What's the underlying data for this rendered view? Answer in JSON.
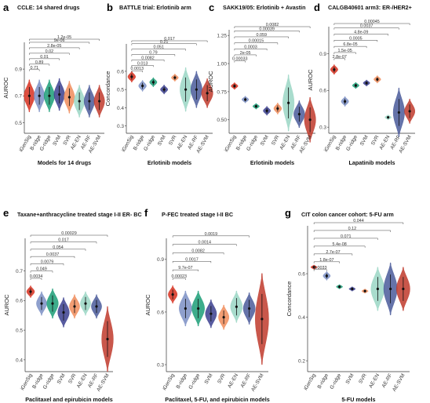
{
  "colors": {
    "iGenSig": "#d7301f",
    "B-ridge": "#7b8fc4",
    "G-ridge": "#1b9e77",
    "SVM": "#3b3f8f",
    "SVR": "#f08c5a",
    "AE-EN": "#9ad6c4",
    "AE-RF": "#4a5a9a",
    "AE-SVM": "#c0392b"
  },
  "chart_data": [
    {
      "panel": "a",
      "type": "violin",
      "title": "CCLE: 14 shared drugs",
      "xlabel": "Models for 14 drugs",
      "ylabel": "AUROC",
      "ylim": [
        0.42,
        1.1
      ],
      "yticks": [
        0.5,
        0.7,
        0.9
      ],
      "categories": [
        "iGenSig",
        "B-ridge",
        "G-ridge",
        "SVM",
        "SVR",
        "AE-EN",
        "AE-RF",
        "AE-SVM"
      ],
      "medians": [
        0.7,
        0.7,
        0.7,
        0.71,
        0.69,
        0.66,
        0.66,
        0.66
      ],
      "spreads": [
        0.12,
        0.12,
        0.12,
        0.12,
        0.12,
        0.12,
        0.12,
        0.12
      ],
      "comparisons": [
        {
          "p": "0.71",
          "to": "B-ridge"
        },
        {
          "p": "0.89",
          "to": "G-ridge"
        },
        {
          "p": "0.01",
          "to": "SVM"
        },
        {
          "p": "0.02",
          "to": "SVR"
        },
        {
          "p": "2.8e-05",
          "to": "AE-EN"
        },
        {
          "p": "9e-06",
          "to": "AE-RF"
        },
        {
          "p": "1.2e-05",
          "to": "AE-SVM"
        }
      ]
    },
    {
      "panel": "b",
      "type": "violin",
      "title": "BATTLE trial: Erlotinib arm",
      "xlabel": "Erlotinib models",
      "ylabel": "Concordance",
      "ylim": [
        0.26,
        0.75
      ],
      "yticks": [
        0.3,
        0.4,
        0.5,
        0.6
      ],
      "categories": [
        "iGenSig",
        "B-ridge",
        "G-ridge",
        "SVM",
        "SVR",
        "AE-EN",
        "AE-RF",
        "AE-SVM"
      ],
      "medians": [
        0.57,
        0.52,
        0.54,
        0.5,
        0.565,
        0.5,
        0.5,
        0.48
      ],
      "spreads": [
        0.03,
        0.03,
        0.025,
        0.025,
        0.02,
        0.12,
        0.1,
        0.08
      ],
      "comparisons": [
        {
          "p": "0.0013",
          "to": "B-ridge"
        },
        {
          "p": "0.013",
          "to": "G-ridge"
        },
        {
          "p": "0.0082",
          "to": "SVM"
        },
        {
          "p": "0.79",
          "to": "SVR"
        },
        {
          "p": "0.051",
          "to": "AE-EN"
        },
        {
          "p": "0.21",
          "to": "AE-RF"
        },
        {
          "p": "0.017",
          "to": "AE-SVM"
        }
      ]
    },
    {
      "panel": "c",
      "type": "violin",
      "title": "SAKK19/05: Erlotinib + Avastin",
      "xlabel": "Erlotinib models",
      "ylabel": "AUROC",
      "ylim": [
        0.38,
        1.3
      ],
      "yticks": [
        0.5,
        0.75,
        1.0,
        1.25
      ],
      "ytick_labels": [
        "0.50",
        "0.75",
        "1.00",
        "1.25"
      ],
      "categories": [
        "iGenSig",
        "B-ridge",
        "G-ridge",
        "SVM",
        "SVR",
        "AE-EN",
        "AE-RF",
        "AE-SVM"
      ],
      "medians": [
        0.8,
        0.68,
        0.62,
        0.58,
        0.6,
        0.65,
        0.55,
        0.5
      ],
      "spreads": [
        0.03,
        0.03,
        0.025,
        0.04,
        0.05,
        0.25,
        0.12,
        0.2
      ],
      "comparisons": [
        {
          "p": "0.00033",
          "to": "B-ridge"
        },
        {
          "p": "2e-05",
          "to": "G-ridge"
        },
        {
          "p": "0.0003",
          "to": "SVM"
        },
        {
          "p": "0.00015",
          "to": "SVR"
        },
        {
          "p": "0.059",
          "to": "AE-EN"
        },
        {
          "p": "0.00039",
          "to": "AE-RF"
        },
        {
          "p": "0.0082",
          "to": "AE-SVM"
        }
      ]
    },
    {
      "panel": "d",
      "type": "violin",
      "title": "CALGB40601 arm3: ER-/HER2+",
      "xlabel": "Lapatinib models",
      "ylabel": "AUROC",
      "ylim": [
        0.25,
        1.12
      ],
      "yticks": [
        0.3,
        0.6,
        0.9
      ],
      "categories": [
        "iGenSig",
        "B-ridge",
        "G-ridge",
        "SVM",
        "SVR",
        "AE-EN",
        "AE-RF",
        "AE-SVM"
      ],
      "medians": [
        0.77,
        0.51,
        0.64,
        0.66,
        0.69,
        0.38,
        0.42,
        0.43
      ],
      "spreads": [
        0.04,
        0.04,
        0.025,
        0.025,
        0.03,
        0.02,
        0.2,
        0.1
      ],
      "comparisons": [
        {
          "p": "2.8e-07",
          "to": "B-ridge"
        },
        {
          "p": "1.5e-05",
          "to": "G-ridge"
        },
        {
          "p": "6.8e-05",
          "to": "SVM"
        },
        {
          "p": "0.0005",
          "to": "SVR"
        },
        {
          "p": "4.8e-09",
          "to": "AE-EN"
        },
        {
          "p": "0.0037",
          "to": "AE-RF"
        },
        {
          "p": "0.00045",
          "to": "AE-SVM"
        }
      ]
    },
    {
      "panel": "e",
      "type": "violin",
      "title": "Taxane+anthracycline treated stage I-II ER- BC",
      "xlabel": "Paclitaxel and epirubicin models",
      "ylabel": "AUROC",
      "ylim": [
        0.36,
        0.81
      ],
      "yticks": [
        0.4,
        0.5,
        0.6,
        0.7
      ],
      "categories": [
        "iGenSig",
        "B-ridge",
        "G-ridge",
        "SVM",
        "SVR",
        "AE-EN",
        "AE-RF",
        "AE-SVM"
      ],
      "medians": [
        0.63,
        0.59,
        0.59,
        0.56,
        0.58,
        0.59,
        0.58,
        0.47
      ],
      "spreads": [
        0.02,
        0.04,
        0.05,
        0.05,
        0.04,
        0.04,
        0.04,
        0.11
      ],
      "comparisons": [
        {
          "p": "0.0034",
          "to": "B-ridge"
        },
        {
          "p": "0.049",
          "to": "G-ridge"
        },
        {
          "p": "0.0079",
          "to": "SVM"
        },
        {
          "p": "0.0037",
          "to": "SVR"
        },
        {
          "p": "0.054",
          "to": "AE-EN"
        },
        {
          "p": "0.017",
          "to": "AE-RF"
        },
        {
          "p": "0.00029",
          "to": "AE-SVM"
        }
      ]
    },
    {
      "panel": "f",
      "type": "violin",
      "title": "P-FEC treated stage I-II BC",
      "xlabel": "Paclitaxel, 5-FU, and epirubicin models",
      "ylabel": "AUROC",
      "ylim": [
        0.26,
        1.02
      ],
      "yticks": [
        0.3,
        0.6,
        0.9
      ],
      "categories": [
        "iGenSig",
        "B-ridge",
        "G-ridge",
        "SVM",
        "SVR",
        "AE-EN",
        "AE-RF",
        "AE-SVM"
      ],
      "medians": [
        0.7,
        0.62,
        0.62,
        0.59,
        0.57,
        0.63,
        0.62,
        0.56
      ],
      "spreads": [
        0.05,
        0.1,
        0.1,
        0.08,
        0.07,
        0.09,
        0.09,
        0.26
      ],
      "comparisons": [
        {
          "p": "0.00023",
          "to": "B-ridge"
        },
        {
          "p": "9.7e-07",
          "to": "G-ridge"
        },
        {
          "p": "0.0017",
          "to": "SVM"
        },
        {
          "p": "0.0082",
          "to": "SVR"
        },
        {
          "p": "0.0014",
          "to": "AE-EN"
        },
        {
          "p": "0.0019",
          "to": "AE-RF"
        }
      ]
    },
    {
      "panel": "g",
      "type": "violin",
      "title": "CIT colon cancer cohort: 5-FU arm",
      "xlabel": "5-FU models",
      "ylabel": "Concordance",
      "ylim": [
        0.15,
        0.82
      ],
      "yticks": [
        0.2,
        0.4,
        0.6
      ],
      "categories": [
        "iGenSig",
        "B-ridge",
        "G-ridge",
        "SVM",
        "SVR",
        "AE-EN",
        "AE-RF",
        "AE-SVM"
      ],
      "medians": [
        0.63,
        0.59,
        0.54,
        0.53,
        0.52,
        0.53,
        0.53,
        0.53
      ],
      "spreads": [
        0.01,
        0.02,
        0.01,
        0.01,
        0.01,
        0.1,
        0.12,
        0.1
      ],
      "comparisons": [
        {
          "p": "0.0033",
          "to": "B-ridge"
        },
        {
          "p": "1.8e-07",
          "to": "G-ridge"
        },
        {
          "p": "2.7e-07",
          "to": "SVM"
        },
        {
          "p": "5.4e-08",
          "to": "SVR"
        },
        {
          "p": "0.071",
          "to": "AE-EN"
        },
        {
          "p": "0.12",
          "to": "AE-RF"
        },
        {
          "p": "0.044",
          "to": "AE-SVM"
        }
      ]
    }
  ]
}
